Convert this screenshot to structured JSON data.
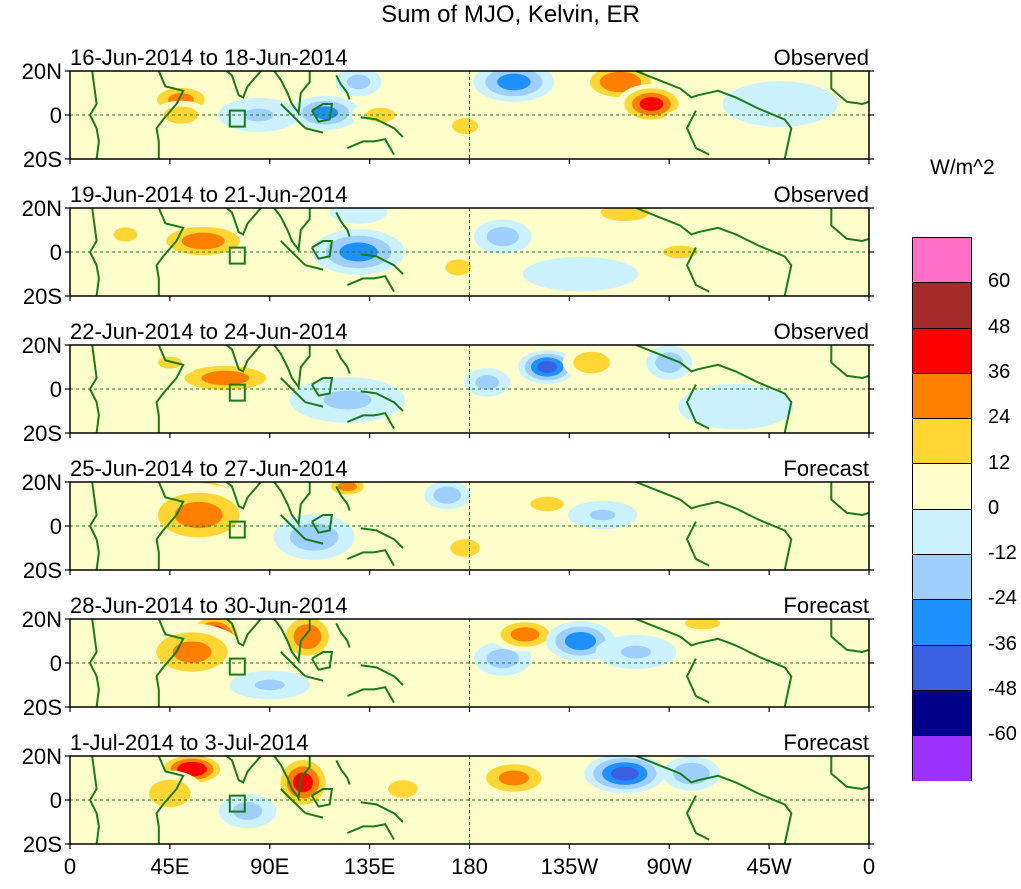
{
  "chart_data": {
    "type": "heatmap",
    "title": "Sum of MJO, Kelvin, ER",
    "unit": "W/m^2",
    "y_tick_labels": [
      "20N",
      "0",
      "20S"
    ],
    "x_tick_labels": [
      "0",
      "45E",
      "90E",
      "135E",
      "180",
      "135W",
      "90W",
      "45W",
      "0"
    ],
    "x_range_deg": [
      0,
      360
    ],
    "y_range_deg": [
      -20,
      20
    ],
    "colorbar": {
      "colors": [
        "#ff6ec7",
        "#a52a2a",
        "#ff0000",
        "#ff7f00",
        "#ffd633",
        "#ffffcc",
        "#cdf2ff",
        "#9ecfff",
        "#1e90ff",
        "#3a5fe0",
        "#00008b",
        "#9b30ff"
      ],
      "tick_labels": [
        "60",
        "48",
        "36",
        "24",
        "12",
        "0",
        "-12",
        "-24",
        "-36",
        "-48",
        "-60"
      ]
    },
    "panels": [
      {
        "period": "16-Jun-2014 to 18-Jun-2014",
        "type": "Observed",
        "anomalies": [
          {
            "lon": 50,
            "lat": 7,
            "v": 28,
            "rx": 12,
            "ry": 6
          },
          {
            "lon": 50,
            "lat": 0,
            "v": 22,
            "rx": 10,
            "ry": 5
          },
          {
            "lon": 115,
            "lat": 1,
            "v": -28,
            "rx": 12,
            "ry": 6
          },
          {
            "lon": 85,
            "lat": 0,
            "v": -14,
            "rx": 14,
            "ry": 6
          },
          {
            "lon": 130,
            "lat": 15,
            "v": -18,
            "rx": 8,
            "ry": 5
          },
          {
            "lon": 140,
            "lat": 0,
            "v": 18,
            "rx": 10,
            "ry": 5
          },
          {
            "lon": 178,
            "lat": -5,
            "v": 20,
            "rx": 8,
            "ry": 5
          },
          {
            "lon": 200,
            "lat": 15,
            "v": -30,
            "rx": 14,
            "ry": 7
          },
          {
            "lon": 248,
            "lat": 15,
            "v": 36,
            "rx": 14,
            "ry": 7
          },
          {
            "lon": 262,
            "lat": 5,
            "v": 40,
            "rx": 12,
            "ry": 7
          },
          {
            "lon": 280,
            "lat": -3,
            "v": 12,
            "rx": 10,
            "ry": 5
          },
          {
            "lon": 320,
            "lat": 5,
            "v": -10,
            "rx": 20,
            "ry": 8
          }
        ]
      },
      {
        "period": "19-Jun-2014 to 21-Jun-2014",
        "type": "Observed",
        "anomalies": [
          {
            "lon": 60,
            "lat": 5,
            "v": 30,
            "rx": 18,
            "ry": 7
          },
          {
            "lon": 25,
            "lat": 8,
            "v": 15,
            "rx": 10,
            "ry": 6
          },
          {
            "lon": 130,
            "lat": 0,
            "v": -30,
            "rx": 16,
            "ry": 8
          },
          {
            "lon": 130,
            "lat": 18,
            "v": -12,
            "rx": 10,
            "ry": 4
          },
          {
            "lon": 175,
            "lat": -7,
            "v": 20,
            "rx": 8,
            "ry": 5
          },
          {
            "lon": 195,
            "lat": 7,
            "v": -20,
            "rx": 10,
            "ry": 6
          },
          {
            "lon": 250,
            "lat": 18,
            "v": 22,
            "rx": 14,
            "ry": 5
          },
          {
            "lon": 275,
            "lat": 0,
            "v": 14,
            "rx": 16,
            "ry": 6
          },
          {
            "lon": 340,
            "lat": 10,
            "v": 12,
            "rx": 12,
            "ry": 6
          },
          {
            "lon": 230,
            "lat": -10,
            "v": -10,
            "rx": 20,
            "ry": 6
          }
        ]
      },
      {
        "period": "22-Jun-2014 to 24-Jun-2014",
        "type": "Observed",
        "anomalies": [
          {
            "lon": 70,
            "lat": 5,
            "v": 30,
            "rx": 20,
            "ry": 6
          },
          {
            "lon": 45,
            "lat": 12,
            "v": 15,
            "rx": 10,
            "ry": 5
          },
          {
            "lon": 125,
            "lat": -5,
            "v": -15,
            "rx": 20,
            "ry": 8
          },
          {
            "lon": 215,
            "lat": 10,
            "v": -40,
            "rx": 10,
            "ry": 6
          },
          {
            "lon": 235,
            "lat": 12,
            "v": 24,
            "rx": 10,
            "ry": 6
          },
          {
            "lon": 188,
            "lat": 3,
            "v": -18,
            "rx": 8,
            "ry": 5
          },
          {
            "lon": 270,
            "lat": 12,
            "v": -22,
            "rx": 8,
            "ry": 6
          },
          {
            "lon": 300,
            "lat": -8,
            "v": -10,
            "rx": 20,
            "ry": 8
          }
        ]
      },
      {
        "period": "25-Jun-2014 to 27-Jun-2014",
        "type": "Forecast",
        "anomalies": [
          {
            "lon": 62,
            "lat": 10,
            "v": 55,
            "rx": 12,
            "ry": 9
          },
          {
            "lon": 58,
            "lat": 5,
            "v": 30,
            "rx": 20,
            "ry": 11
          },
          {
            "lon": 110,
            "lat": -5,
            "v": -22,
            "rx": 14,
            "ry": 8
          },
          {
            "lon": 125,
            "lat": 18,
            "v": 30,
            "rx": 8,
            "ry": 4
          },
          {
            "lon": 170,
            "lat": 14,
            "v": -22,
            "rx": 8,
            "ry": 5
          },
          {
            "lon": 178,
            "lat": -10,
            "v": 18,
            "rx": 10,
            "ry": 6
          },
          {
            "lon": 215,
            "lat": 10,
            "v": 15,
            "rx": 14,
            "ry": 6
          },
          {
            "lon": 240,
            "lat": 5,
            "v": -14,
            "rx": 12,
            "ry": 5
          }
        ]
      },
      {
        "period": "28-Jun-2014 to 30-Jun-2014",
        "type": "Forecast",
        "anomalies": [
          {
            "lon": 65,
            "lat": 12,
            "v": 50,
            "rx": 10,
            "ry": 8
          },
          {
            "lon": 55,
            "lat": 5,
            "v": 28,
            "rx": 18,
            "ry": 10
          },
          {
            "lon": 107,
            "lat": 12,
            "v": 34,
            "rx": 10,
            "ry": 9
          },
          {
            "lon": 90,
            "lat": -10,
            "v": -14,
            "rx": 14,
            "ry": 5
          },
          {
            "lon": 195,
            "lat": 2,
            "v": -20,
            "rx": 10,
            "ry": 6
          },
          {
            "lon": 205,
            "lat": 13,
            "v": 30,
            "rx": 12,
            "ry": 6
          },
          {
            "lon": 230,
            "lat": 10,
            "v": -32,
            "rx": 12,
            "ry": 7
          },
          {
            "lon": 255,
            "lat": 5,
            "v": -14,
            "rx": 14,
            "ry": 6
          },
          {
            "lon": 285,
            "lat": 18,
            "v": 18,
            "rx": 12,
            "ry": 4
          }
        ]
      },
      {
        "period": "1-Jul-2014 to 3-Jul-2014",
        "type": "Forecast",
        "anomalies": [
          {
            "lon": 55,
            "lat": 14,
            "v": 46,
            "rx": 12,
            "ry": 6
          },
          {
            "lon": 45,
            "lat": 3,
            "v": 22,
            "rx": 12,
            "ry": 8
          },
          {
            "lon": 105,
            "lat": 8,
            "v": 40,
            "rx": 10,
            "ry": 10
          },
          {
            "lon": 80,
            "lat": -5,
            "v": -18,
            "rx": 10,
            "ry": 6
          },
          {
            "lon": 150,
            "lat": 5,
            "v": 18,
            "rx": 10,
            "ry": 6
          },
          {
            "lon": 200,
            "lat": 10,
            "v": 28,
            "rx": 14,
            "ry": 7
          },
          {
            "lon": 250,
            "lat": 12,
            "v": -40,
            "rx": 14,
            "ry": 7
          },
          {
            "lon": 280,
            "lat": 12,
            "v": -24,
            "rx": 10,
            "ry": 6
          },
          {
            "lon": 240,
            "lat": -5,
            "v": 12,
            "rx": 12,
            "ry": 6
          }
        ]
      }
    ]
  }
}
